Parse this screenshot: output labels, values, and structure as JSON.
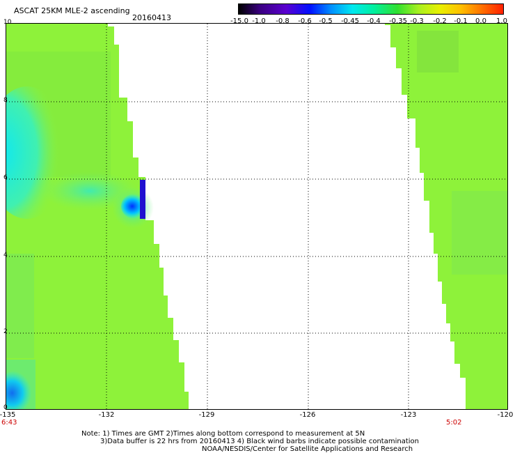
{
  "title": "ASCAT 25KM MLE-2 ascending",
  "date": "20160413",
  "colorbar": {
    "labels": [
      "-15.0",
      "-1.0",
      "-0.8",
      "-0.6",
      "-0.5",
      "-0.45",
      "-0.4",
      "-0.35",
      "-0.3",
      "-0.2",
      "-0.1",
      "0.0",
      "1.0"
    ]
  },
  "axes": {
    "y_labels": [
      "10",
      "8",
      "6",
      "4",
      "2",
      "0"
    ],
    "x_labels": [
      "-135",
      "-132",
      "-129",
      "-126",
      "-123",
      "-120"
    ]
  },
  "times": {
    "left": "6:43",
    "right": "5:02"
  },
  "notes": {
    "line1": "Note: 1) Times are GMT 2)Times along bottom correspond to measurement at 5N",
    "line2": "3)Data buffer is 22 hrs from 20160413 4) Black wind barbs indicate possible contamination",
    "line3": "NOAA/NESDIS/Center for Satellite Applications and Research"
  },
  "colors": {
    "swath_main": "#8ef23a",
    "cyan": "#2ee8e0",
    "blue_dark": "#2010d0",
    "grid": "#000000",
    "time_red": "#cc0000"
  }
}
